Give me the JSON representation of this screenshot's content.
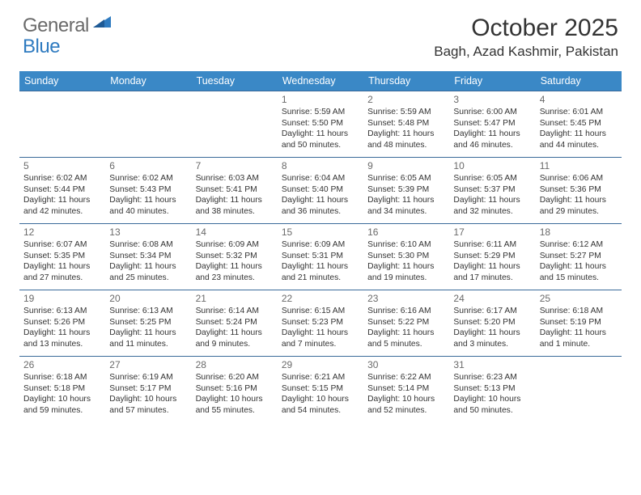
{
  "brand": {
    "part1": "General",
    "part2": "Blue"
  },
  "title": "October 2025",
  "location": "Bagh, Azad Kashmir, Pakistan",
  "colors": {
    "header_bg": "#3a88c6",
    "header_text": "#ffffff",
    "border": "#3a6a9a",
    "daynum": "#6a6a6a",
    "body_text": "#333333",
    "brand_gray": "#6a6a6a",
    "brand_blue": "#2f7bc0",
    "background": "#ffffff"
  },
  "fonts": {
    "title_size": 30,
    "location_size": 17,
    "head_size": 12.5,
    "daynum_size": 12,
    "info_size": 10.3
  },
  "day_names": [
    "Sunday",
    "Monday",
    "Tuesday",
    "Wednesday",
    "Thursday",
    "Friday",
    "Saturday"
  ],
  "weeks": [
    [
      null,
      null,
      null,
      {
        "n": "1",
        "sr": "5:59 AM",
        "ss": "5:50 PM",
        "dl": "11 hours and 50 minutes."
      },
      {
        "n": "2",
        "sr": "5:59 AM",
        "ss": "5:48 PM",
        "dl": "11 hours and 48 minutes."
      },
      {
        "n": "3",
        "sr": "6:00 AM",
        "ss": "5:47 PM",
        "dl": "11 hours and 46 minutes."
      },
      {
        "n": "4",
        "sr": "6:01 AM",
        "ss": "5:45 PM",
        "dl": "11 hours and 44 minutes."
      }
    ],
    [
      {
        "n": "5",
        "sr": "6:02 AM",
        "ss": "5:44 PM",
        "dl": "11 hours and 42 minutes."
      },
      {
        "n": "6",
        "sr": "6:02 AM",
        "ss": "5:43 PM",
        "dl": "11 hours and 40 minutes."
      },
      {
        "n": "7",
        "sr": "6:03 AM",
        "ss": "5:41 PM",
        "dl": "11 hours and 38 minutes."
      },
      {
        "n": "8",
        "sr": "6:04 AM",
        "ss": "5:40 PM",
        "dl": "11 hours and 36 minutes."
      },
      {
        "n": "9",
        "sr": "6:05 AM",
        "ss": "5:39 PM",
        "dl": "11 hours and 34 minutes."
      },
      {
        "n": "10",
        "sr": "6:05 AM",
        "ss": "5:37 PM",
        "dl": "11 hours and 32 minutes."
      },
      {
        "n": "11",
        "sr": "6:06 AM",
        "ss": "5:36 PM",
        "dl": "11 hours and 29 minutes."
      }
    ],
    [
      {
        "n": "12",
        "sr": "6:07 AM",
        "ss": "5:35 PM",
        "dl": "11 hours and 27 minutes."
      },
      {
        "n": "13",
        "sr": "6:08 AM",
        "ss": "5:34 PM",
        "dl": "11 hours and 25 minutes."
      },
      {
        "n": "14",
        "sr": "6:09 AM",
        "ss": "5:32 PM",
        "dl": "11 hours and 23 minutes."
      },
      {
        "n": "15",
        "sr": "6:09 AM",
        "ss": "5:31 PM",
        "dl": "11 hours and 21 minutes."
      },
      {
        "n": "16",
        "sr": "6:10 AM",
        "ss": "5:30 PM",
        "dl": "11 hours and 19 minutes."
      },
      {
        "n": "17",
        "sr": "6:11 AM",
        "ss": "5:29 PM",
        "dl": "11 hours and 17 minutes."
      },
      {
        "n": "18",
        "sr": "6:12 AM",
        "ss": "5:27 PM",
        "dl": "11 hours and 15 minutes."
      }
    ],
    [
      {
        "n": "19",
        "sr": "6:13 AM",
        "ss": "5:26 PM",
        "dl": "11 hours and 13 minutes."
      },
      {
        "n": "20",
        "sr": "6:13 AM",
        "ss": "5:25 PM",
        "dl": "11 hours and 11 minutes."
      },
      {
        "n": "21",
        "sr": "6:14 AM",
        "ss": "5:24 PM",
        "dl": "11 hours and 9 minutes."
      },
      {
        "n": "22",
        "sr": "6:15 AM",
        "ss": "5:23 PM",
        "dl": "11 hours and 7 minutes."
      },
      {
        "n": "23",
        "sr": "6:16 AM",
        "ss": "5:22 PM",
        "dl": "11 hours and 5 minutes."
      },
      {
        "n": "24",
        "sr": "6:17 AM",
        "ss": "5:20 PM",
        "dl": "11 hours and 3 minutes."
      },
      {
        "n": "25",
        "sr": "6:18 AM",
        "ss": "5:19 PM",
        "dl": "11 hours and 1 minute."
      }
    ],
    [
      {
        "n": "26",
        "sr": "6:18 AM",
        "ss": "5:18 PM",
        "dl": "10 hours and 59 minutes."
      },
      {
        "n": "27",
        "sr": "6:19 AM",
        "ss": "5:17 PM",
        "dl": "10 hours and 57 minutes."
      },
      {
        "n": "28",
        "sr": "6:20 AM",
        "ss": "5:16 PM",
        "dl": "10 hours and 55 minutes."
      },
      {
        "n": "29",
        "sr": "6:21 AM",
        "ss": "5:15 PM",
        "dl": "10 hours and 54 minutes."
      },
      {
        "n": "30",
        "sr": "6:22 AM",
        "ss": "5:14 PM",
        "dl": "10 hours and 52 minutes."
      },
      {
        "n": "31",
        "sr": "6:23 AM",
        "ss": "5:13 PM",
        "dl": "10 hours and 50 minutes."
      },
      null
    ]
  ],
  "labels": {
    "sunrise": "Sunrise:",
    "sunset": "Sunset:",
    "daylight": "Daylight:"
  }
}
